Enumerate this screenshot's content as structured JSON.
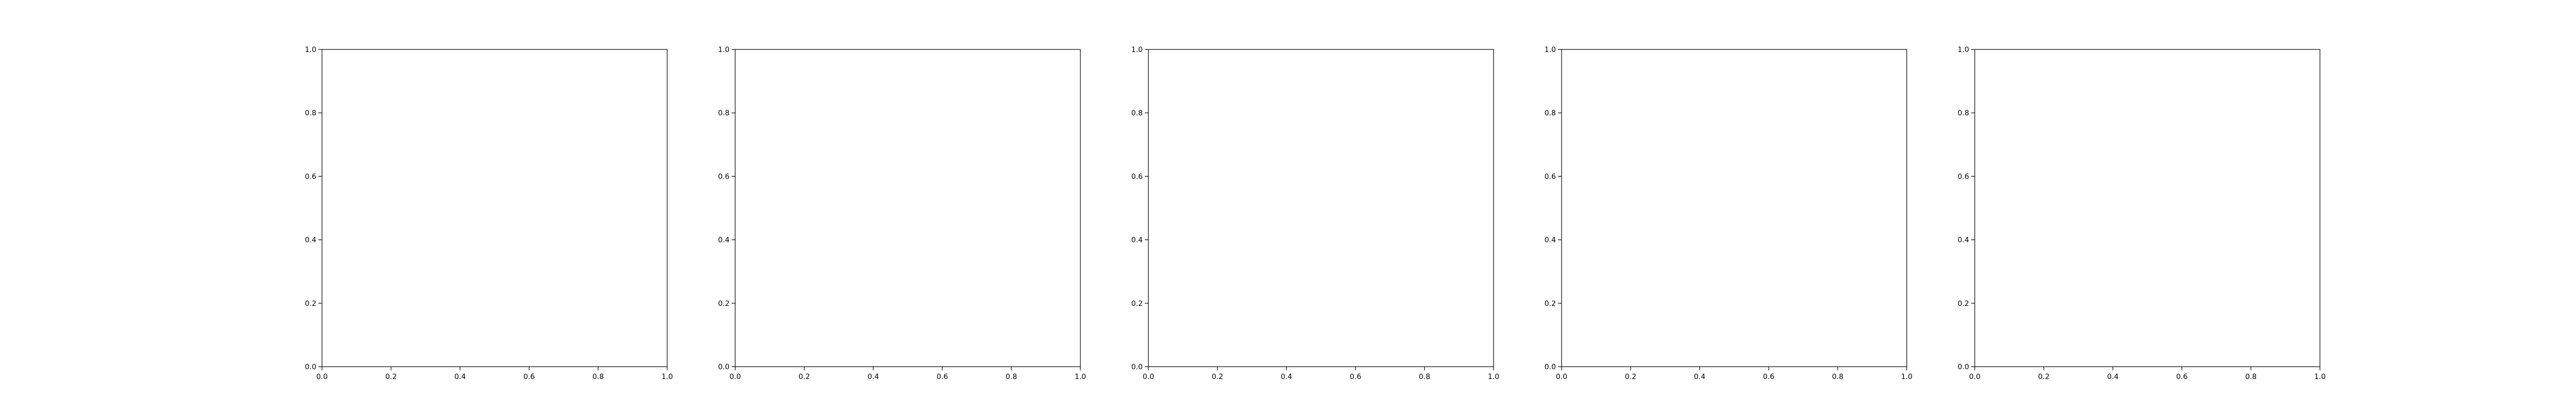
{
  "chart_data": [
    {
      "type": "line",
      "title": "",
      "xlabel": "",
      "ylabel": "",
      "xlim": [
        0,
        1
      ],
      "ylim": [
        0,
        1
      ],
      "xticks": [
        "0.0",
        "0.2",
        "0.4",
        "0.6",
        "0.8",
        "1.0"
      ],
      "yticks": [
        "0.0",
        "0.2",
        "0.4",
        "0.6",
        "0.8",
        "1.0"
      ],
      "grid": false,
      "series": []
    },
    {
      "type": "line",
      "title": "",
      "xlabel": "",
      "ylabel": "",
      "xlim": [
        0,
        1
      ],
      "ylim": [
        0,
        1
      ],
      "xticks": [
        "0.0",
        "0.2",
        "0.4",
        "0.6",
        "0.8",
        "1.0"
      ],
      "yticks": [
        "0.0",
        "0.2",
        "0.4",
        "0.6",
        "0.8",
        "1.0"
      ],
      "grid": false,
      "series": []
    },
    {
      "type": "line",
      "title": "",
      "xlabel": "",
      "ylabel": "",
      "xlim": [
        0,
        1
      ],
      "ylim": [
        0,
        1
      ],
      "xticks": [
        "0.0",
        "0.2",
        "0.4",
        "0.6",
        "0.8",
        "1.0"
      ],
      "yticks": [
        "0.0",
        "0.2",
        "0.4",
        "0.6",
        "0.8",
        "1.0"
      ],
      "grid": false,
      "series": []
    },
    {
      "type": "line",
      "title": "",
      "xlabel": "",
      "ylabel": "",
      "xlim": [
        0,
        1
      ],
      "ylim": [
        0,
        1
      ],
      "xticks": [
        "0.0",
        "0.2",
        "0.4",
        "0.6",
        "0.8",
        "1.0"
      ],
      "yticks": [
        "0.0",
        "0.2",
        "0.4",
        "0.6",
        "0.8",
        "1.0"
      ],
      "grid": false,
      "series": []
    },
    {
      "type": "line",
      "title": "",
      "xlabel": "",
      "ylabel": "",
      "xlim": [
        0,
        1
      ],
      "ylim": [
        0,
        1
      ],
      "xticks": [
        "0.0",
        "0.2",
        "0.4",
        "0.6",
        "0.8",
        "1.0"
      ],
      "yticks": [
        "0.0",
        "0.2",
        "0.4",
        "0.6",
        "0.8",
        "1.0"
      ],
      "grid": false,
      "series": []
    }
  ]
}
